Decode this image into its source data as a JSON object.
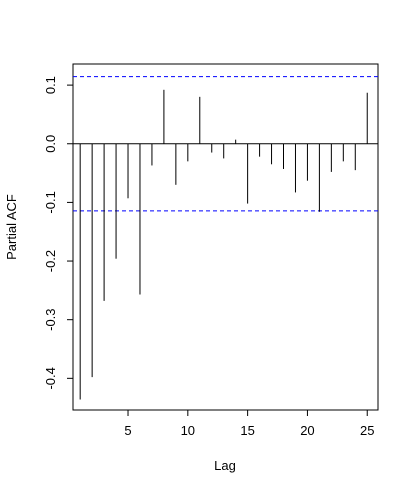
{
  "chart_data": {
    "type": "bar",
    "title": "",
    "xlabel": "Lag",
    "ylabel": "Partial ACF",
    "x": [
      1,
      2,
      3,
      4,
      5,
      6,
      7,
      8,
      9,
      10,
      11,
      12,
      13,
      14,
      15,
      16,
      17,
      18,
      19,
      20,
      21,
      22,
      23,
      24,
      25
    ],
    "values": [
      -0.436,
      -0.398,
      -0.268,
      -0.196,
      -0.093,
      -0.257,
      -0.037,
      0.092,
      -0.07,
      -0.03,
      0.08,
      -0.015,
      -0.025,
      0.007,
      -0.102,
      -0.022,
      -0.035,
      -0.043,
      -0.083,
      -0.063,
      -0.116,
      -0.048,
      -0.03,
      -0.045,
      0.087
    ],
    "confidence_band": 0.1145,
    "xlim": [
      0.4,
      25.9
    ],
    "ylim": [
      -0.454,
      0.136
    ],
    "x_ticks": [
      5,
      10,
      15,
      20,
      25
    ],
    "x_tick_labels": [
      "5",
      "10",
      "15",
      "20",
      "25"
    ],
    "y_ticks": [
      -0.4,
      -0.3,
      -0.2,
      -0.1,
      0.0,
      0.1
    ],
    "y_tick_labels": [
      "-0.4",
      "-0.3",
      "-0.2",
      "-0.1",
      "0.0",
      "0.1"
    ],
    "grid": false,
    "colors": {
      "bars": "#000000",
      "confidence_lines": "#0000ff",
      "axes": "#000000"
    }
  }
}
